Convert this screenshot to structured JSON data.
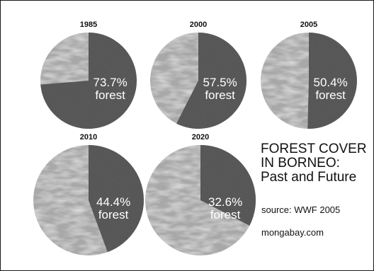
{
  "chart_data": {
    "type": "pie",
    "pies": [
      {
        "year": "1985",
        "value": 73.7,
        "label_pct": "73.7%",
        "label_word": "forest"
      },
      {
        "year": "2000",
        "value": 57.5,
        "label_pct": "57.5%",
        "label_word": "forest"
      },
      {
        "year": "2005",
        "value": 50.4,
        "label_pct": "50.4%",
        "label_word": "forest"
      },
      {
        "year": "2010",
        "value": 44.4,
        "label_pct": "44.4%",
        "label_word": "forest"
      },
      {
        "year": "2020",
        "value": 32.6,
        "label_pct": "32.6%",
        "label_word": "forest"
      }
    ],
    "title_lines": [
      "FOREST COVER",
      "IN BORNEO:",
      "Past and Future"
    ],
    "source": "source: WWF 2005",
    "credit": "mongabay.com",
    "colors": {
      "forest": "#595959",
      "non_forest": "#a8a8a8",
      "background": "#ffffff"
    }
  }
}
